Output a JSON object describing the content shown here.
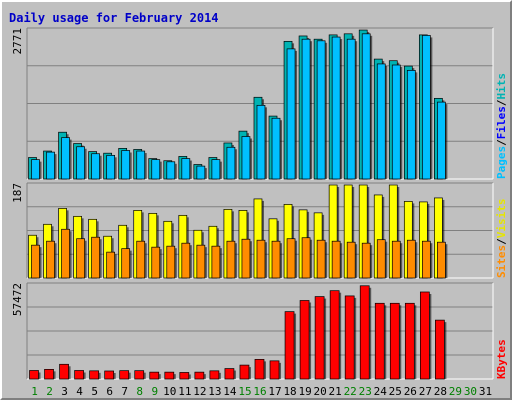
{
  "title": "Daily usage for February 2014",
  "colors": {
    "hits": "#00b3b3",
    "files": "#00c0ff",
    "pages": "#00c0ff",
    "visits": "#ffff00",
    "sites": "#ff8c00",
    "kbytes": "#ff0000",
    "weekday": "#000000",
    "weekend": "#008000"
  },
  "labels": {
    "hits": "Hits",
    "files": "Files",
    "pages": "Pages",
    "sep": "/",
    "visits": "Visits",
    "sites": "Sites",
    "kbytes": "KBytes"
  },
  "chart_data": [
    {
      "type": "bar",
      "title": "Daily usage for February 2014",
      "categories": [
        "1",
        "2",
        "3",
        "4",
        "5",
        "6",
        "7",
        "8",
        "9",
        "10",
        "11",
        "12",
        "13",
        "14",
        "15",
        "16",
        "17",
        "18",
        "19",
        "20",
        "21",
        "22",
        "23",
        "24",
        "25",
        "26",
        "27",
        "28",
        "29",
        "30",
        "31"
      ],
      "weekend_days": [
        "1",
        "2",
        "8",
        "9",
        "15",
        "16",
        "22",
        "23",
        "29",
        "30"
      ],
      "y_max_label": "2771",
      "ylim": [
        0,
        2771
      ],
      "grid": true,
      "series": [
        {
          "name": "Hits",
          "values": [
            400,
            520,
            870,
            660,
            510,
            480,
            570,
            550,
            380,
            340,
            420,
            270,
            400,
            670,
            890,
            1520,
            1170,
            2560,
            2660,
            2600,
            2680,
            2700,
            2770,
            2230,
            2200,
            2100,
            2680,
            1500,
            0,
            0,
            0
          ]
        },
        {
          "name": "Files",
          "values": [
            360,
            500,
            770,
            600,
            470,
            440,
            530,
            520,
            360,
            320,
            380,
            240,
            360,
            590,
            790,
            1370,
            1130,
            2420,
            2600,
            2570,
            2640,
            2600,
            2700,
            2140,
            2120,
            2020,
            2670,
            1430,
            0,
            0,
            0
          ]
        }
      ]
    },
    {
      "type": "bar",
      "categories": [
        "1",
        "2",
        "3",
        "4",
        "5",
        "6",
        "7",
        "8",
        "9",
        "10",
        "11",
        "12",
        "13",
        "14",
        "15",
        "16",
        "17",
        "18",
        "19",
        "20",
        "21",
        "22",
        "23",
        "24",
        "25",
        "26",
        "27",
        "28",
        "29",
        "30",
        "31"
      ],
      "y_max_label": "187",
      "ylim": [
        0,
        187
      ],
      "grid": true,
      "series": [
        {
          "name": "Visits",
          "values": [
            86,
            108,
            140,
            124,
            118,
            84,
            106,
            136,
            130,
            114,
            126,
            96,
            104,
            138,
            136,
            159,
            119,
            148,
            137,
            131,
            187,
            187,
            187,
            167,
            187,
            154,
            153,
            161,
            0,
            0,
            0
          ]
        },
        {
          "name": "Sites",
          "values": [
            66,
            74,
            98,
            79,
            82,
            52,
            59,
            74,
            62,
            64,
            70,
            66,
            64,
            74,
            78,
            76,
            74,
            79,
            81,
            76,
            74,
            72,
            70,
            77,
            74,
            76,
            74,
            72,
            0,
            0,
            0
          ]
        }
      ]
    },
    {
      "type": "bar",
      "categories": [
        "1",
        "2",
        "3",
        "4",
        "5",
        "6",
        "7",
        "8",
        "9",
        "10",
        "11",
        "12",
        "13",
        "14",
        "15",
        "16",
        "17",
        "18",
        "19",
        "20",
        "21",
        "22",
        "23",
        "24",
        "25",
        "26",
        "27",
        "28",
        "29",
        "30",
        "31"
      ],
      "y_max_label": "57472",
      "ylim": [
        0,
        57472
      ],
      "grid": true,
      "series": [
        {
          "name": "KBytes",
          "values": [
            5200,
            5900,
            9000,
            5200,
            5000,
            4900,
            5100,
            5100,
            4200,
            4200,
            4000,
            4200,
            5000,
            6400,
            8500,
            12000,
            11100,
            41200,
            48000,
            50400,
            54000,
            50800,
            57000,
            46300,
            46300,
            46300,
            53200,
            36000,
            0,
            0,
            0
          ]
        }
      ]
    }
  ]
}
